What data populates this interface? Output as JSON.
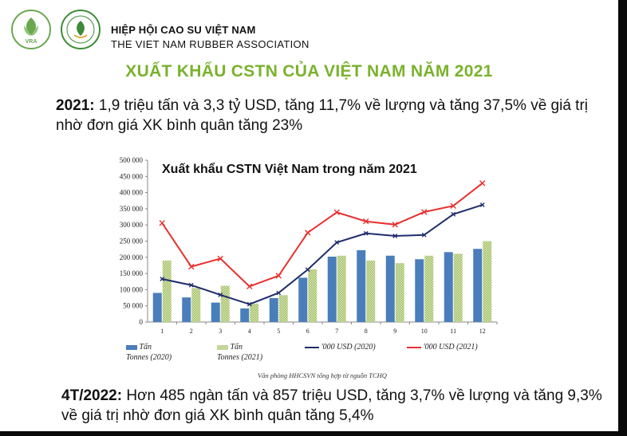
{
  "header": {
    "org_name_vn": "HIỆP HỘI CAO SU VIỆT NAM",
    "org_name_en": "THE VIET NAM RUBBER ASSOCIATION",
    "logo1_text": "VRA"
  },
  "slide_title": "XUẤT KHẨU CSTN CỦA VIỆT NAM NĂM 2021",
  "para1": {
    "lead": "2021:",
    "text": " 1,9 triệu tấn và 3,3 tỷ USD, tăng 11,7% về lượng và tăng 37,5% về giá trị nhờ đơn giá XK bình quân tăng 23%"
  },
  "para2": {
    "lead": "4T/2022:",
    "text": " Hơn 485 ngàn tấn và 857 triệu USD, tăng 3,7% về lượng và tăng 9,3% về giá trị nhờ đơn giá XK bình quân tăng 5,4%"
  },
  "source_note": "Văn phòng HHCSVN tổng hợp từ nguồn TCHQ",
  "chart_data": {
    "type": "bar",
    "title": "Xuất khẩu CSTN Việt Nam trong năm 2021",
    "categories": [
      "1",
      "2",
      "3",
      "4",
      "5",
      "6",
      "7",
      "8",
      "9",
      "10",
      "11",
      "12"
    ],
    "ylim": [
      0,
      500000
    ],
    "yticks": [
      "0",
      "50 000",
      "100 000",
      "150 000",
      "200 000",
      "250 000",
      "300 000",
      "350 000",
      "400 000",
      "450 000",
      "500 000"
    ],
    "legend_position": "bottom",
    "series": [
      {
        "name": "Tấn\nTonnes (2020)",
        "type": "bar",
        "color": "#4a7ebb",
        "values": [
          90000,
          76000,
          60000,
          42000,
          74000,
          137000,
          202000,
          222000,
          205000,
          194000,
          216000,
          226000
        ]
      },
      {
        "name": "Tấn\nTonnes (2021)",
        "type": "bar",
        "color": "#c3d69b",
        "values": [
          190000,
          105000,
          112000,
          57000,
          83000,
          163000,
          205000,
          190000,
          182000,
          205000,
          211000,
          250000
        ]
      },
      {
        "name": "'000 USD (2020)",
        "type": "line",
        "color": "#1f2d6b",
        "values": [
          133000,
          114000,
          84000,
          55000,
          90000,
          162000,
          246000,
          274000,
          266000,
          269000,
          333000,
          362000
        ]
      },
      {
        "name": "'000 USD (2021)",
        "type": "line",
        "color": "#e8302e",
        "values": [
          306000,
          171000,
          196000,
          110000,
          143000,
          276000,
          339000,
          311000,
          301000,
          340000,
          359000,
          429000
        ]
      }
    ]
  }
}
